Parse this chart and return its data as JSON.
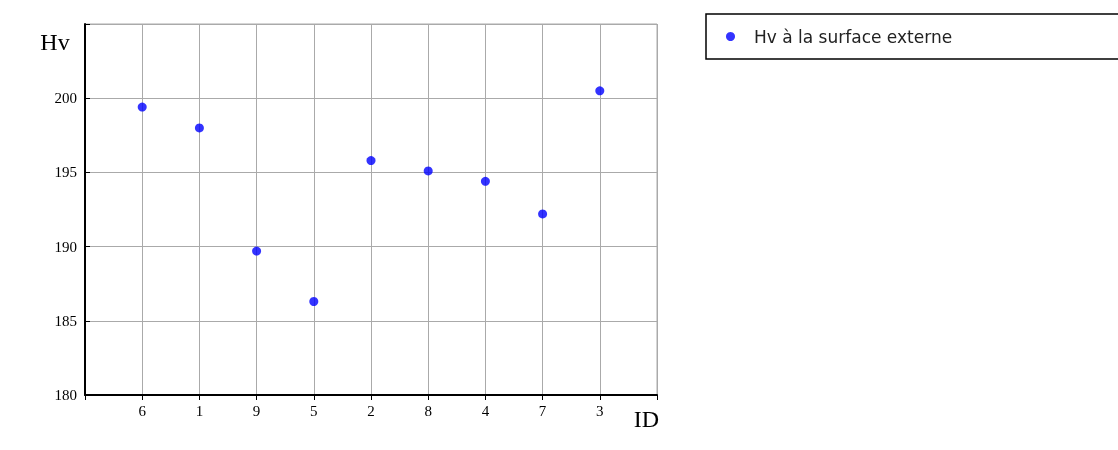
{
  "chart_data": {
    "type": "scatter",
    "xlabel": "ID",
    "ylabel": "Hv",
    "categories": [
      null,
      "6",
      "1",
      "9",
      "5",
      "2",
      "8",
      "4",
      "7",
      "3",
      null
    ],
    "series": [
      {
        "name": "Hv à la surface externe",
        "color": "#0000ff",
        "values": [
          null,
          199.4,
          198.0,
          189.7,
          186.3,
          195.8,
          195.1,
          194.4,
          192.2,
          200.5,
          null
        ]
      }
    ],
    "ylim": [
      180,
      205
    ],
    "yticks": [
      180,
      185,
      190,
      195,
      200,
      {
        "value": 205,
        "label": null
      }
    ],
    "grid": true,
    "legend": "top right",
    "marker": "circle"
  }
}
